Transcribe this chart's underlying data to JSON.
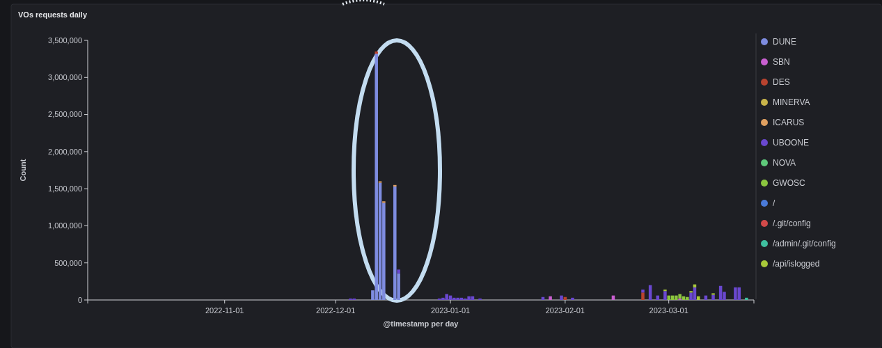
{
  "chart_data": {
    "type": "bar",
    "stacked": true,
    "title": "VOs requests daily",
    "xlabel": "@timestamp per day",
    "ylabel": "Count",
    "legend": "right",
    "xlim": [
      "2022-09-25",
      "2023-03-24"
    ],
    "xticks": [
      {
        "value": "2022-11-01",
        "label": "2022-11-01"
      },
      {
        "value": "2022-12-01",
        "label": "2022-12-01"
      },
      {
        "value": "2023-01-01",
        "label": "2023-01-01"
      },
      {
        "value": "2023-02-01",
        "label": "2023-02-01"
      },
      {
        "value": "2023-03-01",
        "label": "2023-03-01"
      }
    ],
    "ylim": [
      0,
      3500000
    ],
    "yticks": [
      0,
      {
        "value": 500000,
        "label": "500,000"
      },
      {
        "value": 1000000,
        "label": "1,000,000"
      },
      {
        "value": 1500000,
        "label": "1,500,000"
      },
      {
        "value": 2000000,
        "label": "2,000,000"
      },
      {
        "value": 2500000,
        "label": "2,500,000"
      },
      {
        "value": 3000000,
        "label": "3,000,000"
      },
      {
        "value": 3500000,
        "label": "3,500,000"
      }
    ],
    "x": [
      "2022-12-05",
      "2022-12-06",
      "2022-12-11",
      "2022-12-12",
      "2022-12-13",
      "2022-12-14",
      "2022-12-17",
      "2022-12-18",
      "2022-12-29",
      "2022-12-30",
      "2022-12-31",
      "2023-01-01",
      "2023-01-02",
      "2023-01-03",
      "2023-01-04",
      "2023-01-05",
      "2023-01-06",
      "2023-01-07",
      "2023-01-09",
      "2023-01-26",
      "2023-01-28",
      "2023-01-31",
      "2023-02-01",
      "2023-02-03",
      "2023-02-14",
      "2023-02-22",
      "2023-02-24",
      "2023-02-26",
      "2023-02-28",
      "2023-03-01",
      "2023-03-02",
      "2023-03-03",
      "2023-03-04",
      "2023-03-05",
      "2023-03-06",
      "2023-03-07",
      "2023-03-08",
      "2023-03-09",
      "2023-03-11",
      "2023-03-13",
      "2023-03-15",
      "2023-03-16",
      "2023-03-19",
      "2023-03-20",
      "2023-03-22"
    ],
    "series": [
      {
        "name": "DUNE",
        "color": "#7e8ce0",
        "values": [
          null,
          null,
          130000,
          3320000,
          1580000,
          1310000,
          1530000,
          360000,
          null,
          null,
          null,
          null,
          null,
          null,
          null,
          null,
          null,
          null,
          null,
          null,
          null,
          null,
          null,
          null,
          null,
          null,
          null,
          null,
          null,
          null,
          null,
          null,
          null,
          null,
          null,
          null,
          null,
          null,
          null,
          null,
          null,
          null,
          null,
          null,
          null
        ]
      },
      {
        "name": "SBN",
        "color": "#c95fd0",
        "values": [
          null,
          null,
          null,
          null,
          null,
          null,
          null,
          null,
          null,
          null,
          null,
          null,
          null,
          null,
          null,
          null,
          null,
          null,
          null,
          null,
          50000,
          null,
          null,
          null,
          60000,
          null,
          null,
          null,
          null,
          null,
          null,
          null,
          20000,
          null,
          null,
          null,
          null,
          null,
          null,
          null,
          null,
          null,
          null,
          null,
          null
        ]
      },
      {
        "name": "DES",
        "color": "#b8432f",
        "values": [
          null,
          null,
          null,
          30000,
          null,
          null,
          null,
          null,
          null,
          null,
          null,
          null,
          null,
          null,
          null,
          null,
          null,
          null,
          null,
          null,
          null,
          null,
          40000,
          null,
          null,
          100000,
          null,
          null,
          null,
          null,
          null,
          null,
          null,
          null,
          null,
          null,
          null,
          null,
          null,
          null,
          null,
          null,
          null,
          null,
          null
        ]
      },
      {
        "name": "MINERVA",
        "color": "#c8b44a",
        "values": [
          null,
          null,
          null,
          null,
          null,
          null,
          null,
          null,
          null,
          null,
          null,
          null,
          null,
          null,
          null,
          null,
          null,
          null,
          null,
          null,
          null,
          null,
          null,
          null,
          null,
          null,
          null,
          null,
          null,
          null,
          null,
          null,
          null,
          null,
          null,
          null,
          null,
          null,
          null,
          null,
          null,
          null,
          null,
          null,
          null
        ]
      },
      {
        "name": "ICARUS",
        "color": "#e0a060",
        "values": [
          null,
          null,
          null,
          null,
          20000,
          20000,
          20000,
          null,
          null,
          null,
          null,
          null,
          null,
          null,
          null,
          null,
          null,
          null,
          null,
          null,
          null,
          null,
          null,
          null,
          null,
          null,
          null,
          null,
          null,
          null,
          null,
          null,
          null,
          null,
          null,
          null,
          null,
          null,
          null,
          null,
          null,
          null,
          null,
          null,
          null
        ]
      },
      {
        "name": "UBOONE",
        "color": "#6a48d0",
        "values": [
          20000,
          20000,
          null,
          null,
          null,
          null,
          null,
          50000,
          20000,
          30000,
          80000,
          60000,
          30000,
          30000,
          30000,
          20000,
          50000,
          50000,
          20000,
          40000,
          null,
          60000,
          null,
          30000,
          null,
          40000,
          200000,
          60000,
          120000,
          null,
          null,
          null,
          null,
          null,
          null,
          100000,
          170000,
          null,
          60000,
          70000,
          190000,
          110000,
          170000,
          170000,
          null
        ]
      },
      {
        "name": "NOVA",
        "color": "#5ec97a",
        "values": [
          null,
          null,
          null,
          null,
          null,
          null,
          null,
          null,
          null,
          null,
          null,
          null,
          null,
          null,
          null,
          null,
          null,
          null,
          null,
          null,
          null,
          null,
          null,
          null,
          null,
          null,
          null,
          null,
          null,
          null,
          null,
          null,
          null,
          null,
          null,
          null,
          null,
          null,
          null,
          null,
          null,
          null,
          null,
          null,
          null
        ]
      },
      {
        "name": "GWOSC",
        "color": "#8cc63f",
        "values": [
          null,
          null,
          null,
          null,
          null,
          null,
          null,
          null,
          null,
          null,
          null,
          null,
          null,
          null,
          null,
          null,
          null,
          null,
          null,
          null,
          null,
          null,
          null,
          null,
          null,
          null,
          null,
          null,
          null,
          60000,
          60000,
          60000,
          60000,
          50000,
          40000,
          null,
          null,
          null,
          null,
          null,
          null,
          null,
          null,
          null,
          null
        ]
      },
      {
        "name": "/",
        "color": "#4a7ad8",
        "values": [
          null,
          null,
          null,
          null,
          null,
          null,
          null,
          null,
          null,
          null,
          null,
          null,
          null,
          null,
          null,
          null,
          null,
          null,
          null,
          null,
          null,
          null,
          null,
          null,
          null,
          null,
          null,
          null,
          null,
          null,
          null,
          null,
          null,
          null,
          null,
          null,
          null,
          null,
          null,
          null,
          null,
          null,
          null,
          null,
          null
        ]
      },
      {
        "name": "/.git/config",
        "color": "#d24a4a",
        "values": [
          null,
          null,
          null,
          null,
          null,
          null,
          null,
          null,
          null,
          null,
          null,
          null,
          null,
          null,
          null,
          null,
          null,
          null,
          null,
          null,
          null,
          null,
          null,
          null,
          null,
          null,
          null,
          null,
          null,
          null,
          null,
          null,
          null,
          null,
          null,
          null,
          null,
          null,
          null,
          null,
          null,
          null,
          null,
          null,
          null
        ]
      },
      {
        "name": "/admin/.git/config",
        "color": "#3fbf9f",
        "values": [
          null,
          null,
          null,
          null,
          null,
          null,
          null,
          null,
          null,
          null,
          null,
          null,
          null,
          null,
          null,
          null,
          null,
          null,
          null,
          null,
          null,
          null,
          null,
          null,
          null,
          null,
          null,
          null,
          null,
          null,
          null,
          null,
          null,
          null,
          null,
          null,
          null,
          null,
          null,
          null,
          null,
          null,
          null,
          null,
          30000
        ]
      },
      {
        "name": "/api/islogged",
        "color": "#a9c93a",
        "values": [
          null,
          null,
          null,
          null,
          null,
          null,
          null,
          null,
          null,
          null,
          null,
          null,
          null,
          null,
          null,
          null,
          null,
          null,
          null,
          null,
          null,
          null,
          null,
          null,
          null,
          null,
          null,
          null,
          20000,
          null,
          null,
          null,
          null,
          null,
          null,
          20000,
          40000,
          50000,
          null,
          20000,
          null,
          null,
          null,
          null,
          null
        ]
      }
    ]
  }
}
